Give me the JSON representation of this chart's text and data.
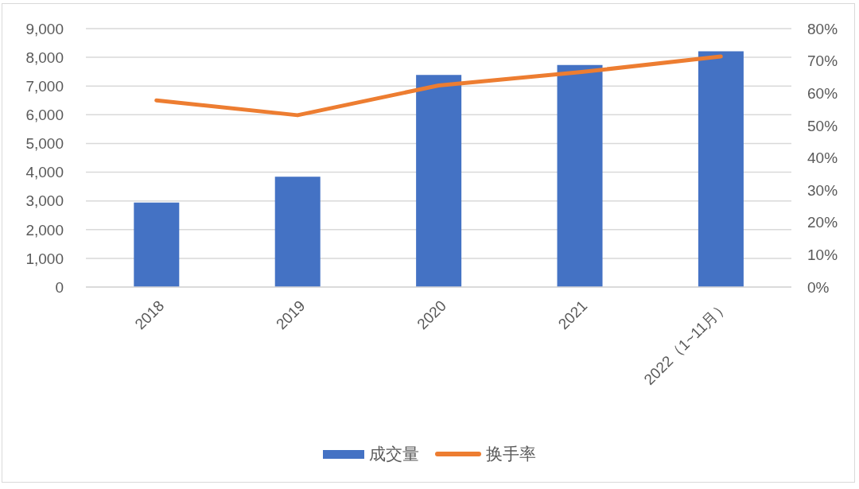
{
  "chart_data": {
    "type": "bar",
    "categories": [
      "2018",
      "2019",
      "2020",
      "2021",
      "2022（1~11月）"
    ],
    "series": [
      {
        "name": "成交量",
        "type": "bar",
        "color": "#4472c4",
        "values": [
          2940,
          3840,
          7390,
          7730,
          8210
        ]
      },
      {
        "name": "换手率",
        "type": "line",
        "axis": "y2",
        "color": "#ed7d31",
        "values": [
          57.8,
          53.2,
          62.4,
          66.5,
          71.4
        ]
      }
    ],
    "ylim": [
      0,
      9000
    ],
    "yticks": [
      0,
      {
        "value": 1000,
        "label": "1,000"
      },
      {
        "value": 2000,
        "label": "2,000"
      },
      {
        "value": 3000,
        "label": "3,000"
      },
      {
        "value": 4000,
        "label": "4,000"
      },
      {
        "value": 5000,
        "label": "5,000"
      },
      {
        "value": 6000,
        "label": "6,000"
      },
      {
        "value": 7000,
        "label": "7,000"
      },
      {
        "value": 8000,
        "label": "8,000"
      },
      {
        "value": 9000,
        "label": "9,000"
      }
    ],
    "y2lim": [
      0,
      80
    ],
    "y2ticks": [
      {
        "value": 0,
        "label": "0%"
      },
      {
        "value": 10,
        "label": "10%"
      },
      {
        "value": 20,
        "label": "20%"
      },
      {
        "value": 30,
        "label": "30%"
      },
      {
        "value": 40,
        "label": "40%"
      },
      {
        "value": 50,
        "label": "50%"
      },
      {
        "value": 60,
        "label": "60%"
      },
      {
        "value": 70,
        "label": "70%"
      },
      {
        "value": 80,
        "label": "80%"
      }
    ],
    "grid": "y",
    "legend": "bottom"
  }
}
